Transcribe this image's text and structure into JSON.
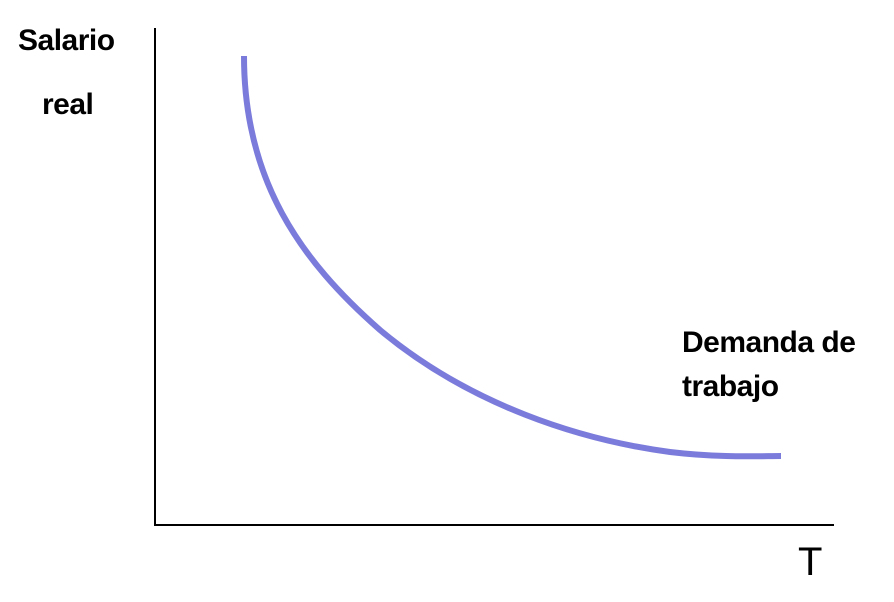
{
  "diagram": {
    "y_axis_label_line1": "Salario",
    "y_axis_label_line2": "real",
    "x_axis_label": "T",
    "curve_label_line1": "Demanda de",
    "curve_label_line2": "trabajo",
    "curve_color": "#7b7bdc",
    "axis_color": "#000000"
  }
}
